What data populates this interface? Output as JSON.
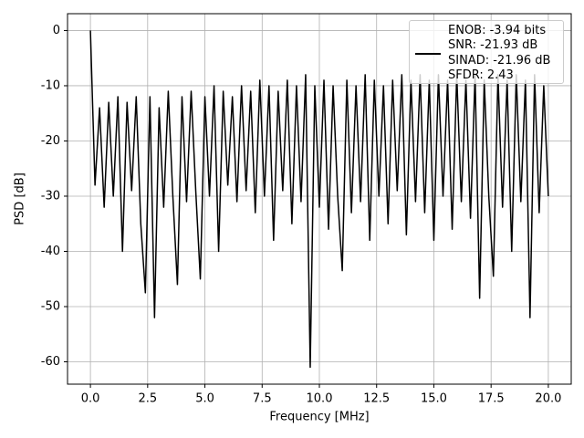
{
  "chart_data": {
    "type": "line",
    "xlabel": "Frequency [MHz]",
    "ylabel": "PSD [dB]",
    "x": [
      0,
      0.2,
      0.4,
      0.6,
      0.8,
      1.0,
      1.2,
      1.4,
      1.6,
      1.8,
      2.0,
      2.2,
      2.4,
      2.6,
      2.8,
      3.0,
      3.2,
      3.4,
      3.6,
      3.8,
      4.0,
      4.2,
      4.4,
      4.6,
      4.8,
      5.0,
      5.2,
      5.4,
      5.6,
      5.8,
      6.0,
      6.2,
      6.4,
      6.6,
      6.8,
      7.0,
      7.2,
      7.4,
      7.6,
      7.8,
      8.0,
      8.2,
      8.4,
      8.6,
      8.8,
      9.0,
      9.2,
      9.4,
      9.6,
      9.8,
      10.0,
      10.2,
      10.4,
      10.6,
      10.8,
      11.0,
      11.2,
      11.4,
      11.6,
      11.8,
      12.0,
      12.2,
      12.4,
      12.6,
      12.8,
      13.0,
      13.2,
      13.4,
      13.6,
      13.8,
      14.0,
      14.2,
      14.4,
      14.6,
      14.8,
      15.0,
      15.2,
      15.4,
      15.6,
      15.8,
      16.0,
      16.2,
      16.4,
      16.6,
      16.8,
      17.0,
      17.2,
      17.4,
      17.6,
      17.8,
      18.0,
      18.2,
      18.4,
      18.6,
      18.8,
      19.0,
      19.2,
      19.4,
      19.6,
      19.8,
      20.0
    ],
    "series": [
      {
        "name": "ENOB: -3.94 bits\nSNR: -21.93 dB\nSINAD: -21.96 dB\nSFDR: 2.43",
        "color": "#000000",
        "values": [
          0,
          -28,
          -14,
          -32,
          -13,
          -30,
          -12,
          -40,
          -13,
          -29,
          -12,
          -35,
          -47.5,
          -12,
          -52,
          -14,
          -32,
          -11,
          -30,
          -46,
          -12,
          -31,
          -11,
          -29,
          -45,
          -12,
          -30,
          -10,
          -40,
          -11,
          -28,
          -12,
          -31,
          -10,
          -29,
          -11,
          -33,
          -9,
          -30,
          -10,
          -38,
          -11,
          -29,
          -9,
          -35,
          -10,
          -31,
          -8,
          -61,
          -10,
          -32,
          -9,
          -36,
          -10,
          -30,
          -43.5,
          -9,
          -33,
          -10,
          -31,
          -8,
          -38,
          -9,
          -30,
          -10,
          -35,
          -9,
          -29,
          -8,
          -37,
          -9,
          -31,
          -8,
          -33,
          -9,
          -38,
          -8,
          -30,
          -9,
          -36,
          -8,
          -31,
          -9,
          -34,
          -8,
          -48.5,
          -9,
          -30,
          -44.5,
          -8,
          -32,
          -9,
          -40,
          -8,
          -31,
          -9,
          -52,
          -8,
          -33,
          -10,
          -30
        ]
      }
    ],
    "xlim": [
      -1,
      21
    ],
    "xticks": [
      {
        "value": 0,
        "label": "0.0"
      },
      {
        "value": 2.5,
        "label": "2.5"
      },
      {
        "value": 5,
        "label": "5.0"
      },
      {
        "value": 7.5,
        "label": "7.5"
      },
      {
        "value": 10,
        "label": "10.0"
      },
      {
        "value": 12.5,
        "label": "12.5"
      },
      {
        "value": 15,
        "label": "15.0"
      },
      {
        "value": 17.5,
        "label": "17.5"
      },
      {
        "value": 20,
        "label": "20.0"
      }
    ],
    "ylim": [
      -64.05,
      3.05
    ],
    "yticks": [
      0,
      -10,
      -20,
      -30,
      -40,
      -50,
      -60
    ],
    "grid": true,
    "legend": "upper right"
  }
}
